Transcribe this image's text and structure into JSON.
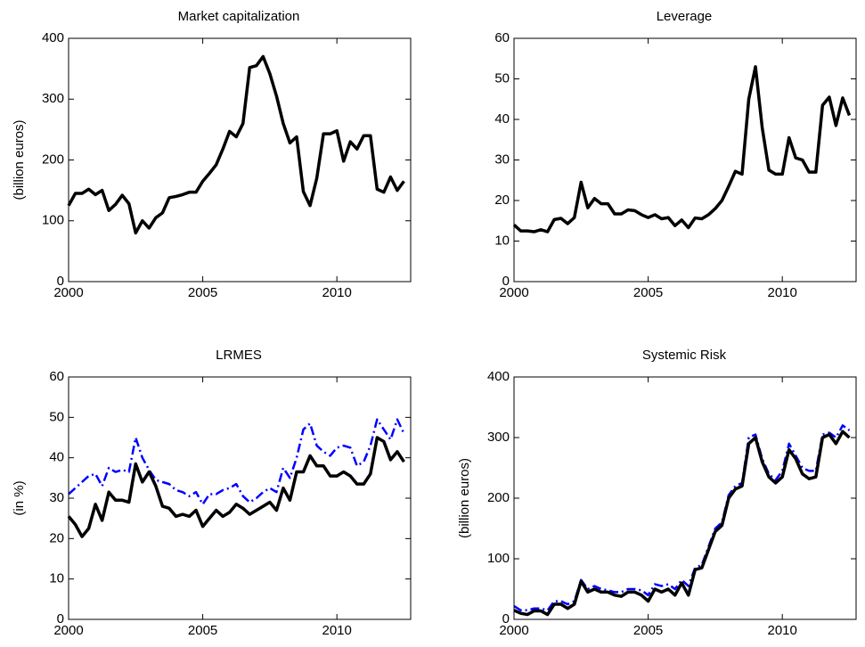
{
  "chart_data": [
    {
      "type": "line",
      "title": "Market capitalization",
      "ylabel": "(billion euros)",
      "x": [
        2000,
        2000.25,
        2000.5,
        2000.75,
        2001,
        2001.25,
        2001.5,
        2001.75,
        2002,
        2002.25,
        2002.5,
        2002.75,
        2003,
        2003.25,
        2003.5,
        2003.75,
        2004,
        2004.25,
        2004.5,
        2004.75,
        2005,
        2005.25,
        2005.5,
        2005.75,
        2006,
        2006.25,
        2006.5,
        2006.75,
        2007,
        2007.25,
        2007.5,
        2007.75,
        2008,
        2008.25,
        2008.5,
        2008.75,
        2009,
        2009.25,
        2009.5,
        2009.75,
        2010,
        2010.25,
        2010.5,
        2010.75,
        2011,
        2011.25,
        2011.5,
        2011.75,
        2012,
        2012.25,
        2012.5
      ],
      "series": [
        {
          "color": "#000000",
          "style": "solid",
          "values": [
            125,
            145,
            145,
            152,
            143,
            150,
            117,
            127,
            142,
            128,
            80,
            100,
            88,
            105,
            113,
            138,
            140,
            143,
            147,
            147,
            165,
            178,
            192,
            218,
            247,
            238,
            260,
            352,
            355,
            370,
            342,
            305,
            260,
            228,
            238,
            148,
            125,
            170,
            243,
            243,
            248,
            198,
            230,
            218,
            240,
            240,
            152,
            147,
            172,
            150,
            165
          ]
        }
      ],
      "xlim": [
        2000,
        2012.75
      ],
      "ylim": [
        0,
        400
      ],
      "xticks": [
        2000,
        2005,
        2010
      ],
      "yticks": [
        0,
        100,
        200,
        300,
        400
      ]
    },
    {
      "type": "line",
      "title": "Leverage",
      "x": [
        2000,
        2000.25,
        2000.5,
        2000.75,
        2001,
        2001.25,
        2001.5,
        2001.75,
        2002,
        2002.25,
        2002.5,
        2002.75,
        2003,
        2003.25,
        2003.5,
        2003.75,
        2004,
        2004.25,
        2004.5,
        2004.75,
        2005,
        2005.25,
        2005.5,
        2005.75,
        2006,
        2006.25,
        2006.5,
        2006.75,
        2007,
        2007.25,
        2007.5,
        2007.75,
        2008,
        2008.25,
        2008.5,
        2008.75,
        2009,
        2009.25,
        2009.5,
        2009.75,
        2010,
        2010.25,
        2010.5,
        2010.75,
        2011,
        2011.25,
        2011.5,
        2011.75,
        2012,
        2012.25,
        2012.5
      ],
      "series": [
        {
          "color": "#000000",
          "style": "solid",
          "values": [
            14,
            12.5,
            12.5,
            12.3,
            12.8,
            12.3,
            15.3,
            15.6,
            14.3,
            15.8,
            24.5,
            18.2,
            20.5,
            19.2,
            19.2,
            16.7,
            16.7,
            17.7,
            17.5,
            16.5,
            15.8,
            16.5,
            15.5,
            15.8,
            13.8,
            15.2,
            13.3,
            15.7,
            15.5,
            16.5,
            18,
            20,
            23.5,
            27.2,
            26.5,
            45,
            53,
            38,
            27.5,
            26.5,
            26.5,
            35.5,
            30.5,
            30,
            27,
            27,
            43.5,
            45.5,
            38.5,
            45.3,
            41
          ]
        }
      ],
      "xlim": [
        2000,
        2012.75
      ],
      "ylim": [
        0,
        60
      ],
      "xticks": [
        2000,
        2005,
        2010
      ],
      "yticks": [
        0,
        10,
        20,
        30,
        40,
        50,
        60
      ]
    },
    {
      "type": "line",
      "title": "LRMES",
      "ylabel": "(in %)",
      "x": [
        2000,
        2000.25,
        2000.5,
        2000.75,
        2001,
        2001.25,
        2001.5,
        2001.75,
        2002,
        2002.25,
        2002.5,
        2002.75,
        2003,
        2003.25,
        2003.5,
        2003.75,
        2004,
        2004.25,
        2004.5,
        2004.75,
        2005,
        2005.25,
        2005.5,
        2005.75,
        2006,
        2006.25,
        2006.5,
        2006.75,
        2007,
        2007.25,
        2007.5,
        2007.75,
        2008,
        2008.25,
        2008.5,
        2008.75,
        2009,
        2009.25,
        2009.5,
        2009.75,
        2010,
        2010.25,
        2010.5,
        2010.75,
        2011,
        2011.25,
        2011.5,
        2011.75,
        2012,
        2012.25,
        2012.5
      ],
      "series": [
        {
          "color": "#0000ff",
          "style": "dashdot",
          "values": [
            31,
            32.5,
            34,
            35.5,
            36,
            33,
            37.5,
            36.5,
            37,
            36.5,
            45,
            40,
            37,
            34.5,
            34,
            33.5,
            32,
            31.5,
            30.5,
            31.5,
            28.5,
            31,
            31,
            32,
            32.5,
            33.5,
            30.5,
            29,
            30,
            31.5,
            32.5,
            31.5,
            37.5,
            35,
            40,
            47,
            48.5,
            43,
            41.5,
            40.5,
            42.5,
            43,
            42.5,
            38,
            39,
            43,
            49.5,
            47,
            44.5,
            49.5,
            46
          ]
        },
        {
          "color": "#000000",
          "style": "solid",
          "values": [
            25.5,
            23.5,
            20.5,
            22.5,
            28.5,
            24.5,
            31.5,
            29.5,
            29.5,
            29,
            38.5,
            34,
            36.5,
            33,
            28,
            27.5,
            25.5,
            26,
            25.5,
            27,
            23,
            25,
            27,
            25.5,
            26.5,
            28.5,
            27.5,
            26,
            27,
            28,
            29,
            27,
            32.5,
            29.5,
            36.5,
            36.5,
            40.5,
            38,
            38,
            35.5,
            35.5,
            36.5,
            35.5,
            33.5,
            33.5,
            36,
            45,
            44,
            39.5,
            41.5,
            39
          ]
        }
      ],
      "xlim": [
        2000,
        2012.75
      ],
      "ylim": [
        0,
        60
      ],
      "xticks": [
        2000,
        2005,
        2010
      ],
      "yticks": [
        0,
        10,
        20,
        30,
        40,
        50,
        60
      ]
    },
    {
      "type": "line",
      "title": "Systemic Risk",
      "ylabel": "(billion euros)",
      "x": [
        2000,
        2000.25,
        2000.5,
        2000.75,
        2001,
        2001.25,
        2001.5,
        2001.75,
        2002,
        2002.25,
        2002.5,
        2002.75,
        2003,
        2003.25,
        2003.5,
        2003.75,
        2004,
        2004.25,
        2004.5,
        2004.75,
        2005,
        2005.25,
        2005.5,
        2005.75,
        2006,
        2006.25,
        2006.5,
        2006.75,
        2007,
        2007.25,
        2007.5,
        2007.75,
        2008,
        2008.25,
        2008.5,
        2008.75,
        2009,
        2009.25,
        2009.5,
        2009.75,
        2010,
        2010.25,
        2010.5,
        2010.75,
        2011,
        2011.25,
        2011.5,
        2011.75,
        2012,
        2012.25,
        2012.5
      ],
      "series": [
        {
          "color": "#0000ff",
          "style": "dashdot",
          "values": [
            22,
            15,
            15,
            18,
            18,
            15,
            30,
            30,
            25,
            30,
            65,
            50,
            55,
            50,
            48,
            45,
            45,
            50,
            50,
            48,
            40,
            58,
            55,
            58,
            50,
            65,
            55,
            85,
            90,
            120,
            150,
            160,
            205,
            220,
            225,
            300,
            305,
            265,
            240,
            230,
            245,
            290,
            270,
            250,
            245,
            245,
            305,
            308,
            300,
            320,
            312
          ]
        },
        {
          "color": "#000000",
          "style": "solid",
          "values": [
            15,
            10,
            8,
            14,
            14,
            8,
            25,
            25,
            18,
            25,
            63,
            45,
            50,
            45,
            45,
            40,
            38,
            45,
            45,
            40,
            30,
            50,
            45,
            50,
            40,
            60,
            40,
            82,
            85,
            115,
            145,
            155,
            200,
            215,
            220,
            290,
            300,
            260,
            235,
            225,
            235,
            280,
            265,
            240,
            232,
            235,
            300,
            305,
            290,
            310,
            300
          ]
        }
      ],
      "xlim": [
        2000,
        2012.75
      ],
      "ylim": [
        0,
        400
      ],
      "xticks": [
        2000,
        2005,
        2010
      ],
      "yticks": [
        0,
        100,
        200,
        300,
        400
      ]
    }
  ]
}
